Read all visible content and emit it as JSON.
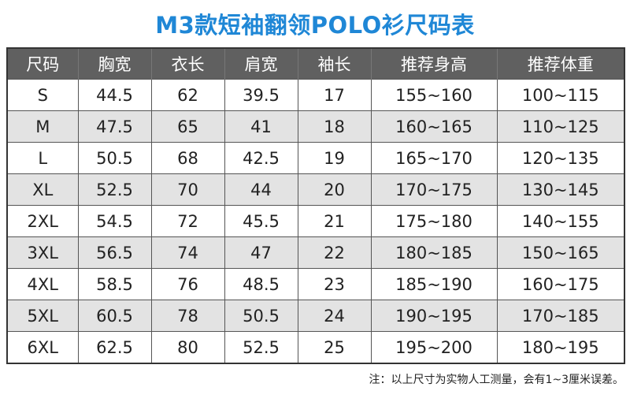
{
  "title": "M3款短袖翻领POLO衫尺码表",
  "colors": {
    "title": "#1f87d6",
    "header_bg": "#606060",
    "header_text": "#ffffff",
    "row_alt": "#e3e3e3"
  },
  "table": {
    "headers": [
      "尺码",
      "胸宽",
      "衣长",
      "肩宽",
      "袖长",
      "推荐身高",
      "推荐体重"
    ],
    "rows": [
      [
        "S",
        "44.5",
        "62",
        "39.5",
        "17",
        "155~160",
        "100~115"
      ],
      [
        "M",
        "47.5",
        "65",
        "41",
        "18",
        "160~165",
        "110~125"
      ],
      [
        "L",
        "50.5",
        "68",
        "42.5",
        "19",
        "165~170",
        "120~135"
      ],
      [
        "XL",
        "52.5",
        "70",
        "44",
        "20",
        "170~175",
        "130~145"
      ],
      [
        "2XL",
        "54.5",
        "72",
        "45.5",
        "21",
        "175~180",
        "140~155"
      ],
      [
        "3XL",
        "56.5",
        "74",
        "47",
        "22",
        "180~185",
        "150~165"
      ],
      [
        "4XL",
        "58.5",
        "76",
        "48.5",
        "23",
        "185~190",
        "160~175"
      ],
      [
        "5XL",
        "60.5",
        "78",
        "50.5",
        "24",
        "190~195",
        "170~185"
      ],
      [
        "6XL",
        "62.5",
        "80",
        "52.5",
        "25",
        "195~200",
        "180~195"
      ]
    ]
  },
  "note": "注：以上尺寸为实物人工测量，会有1~3厘米误差。"
}
